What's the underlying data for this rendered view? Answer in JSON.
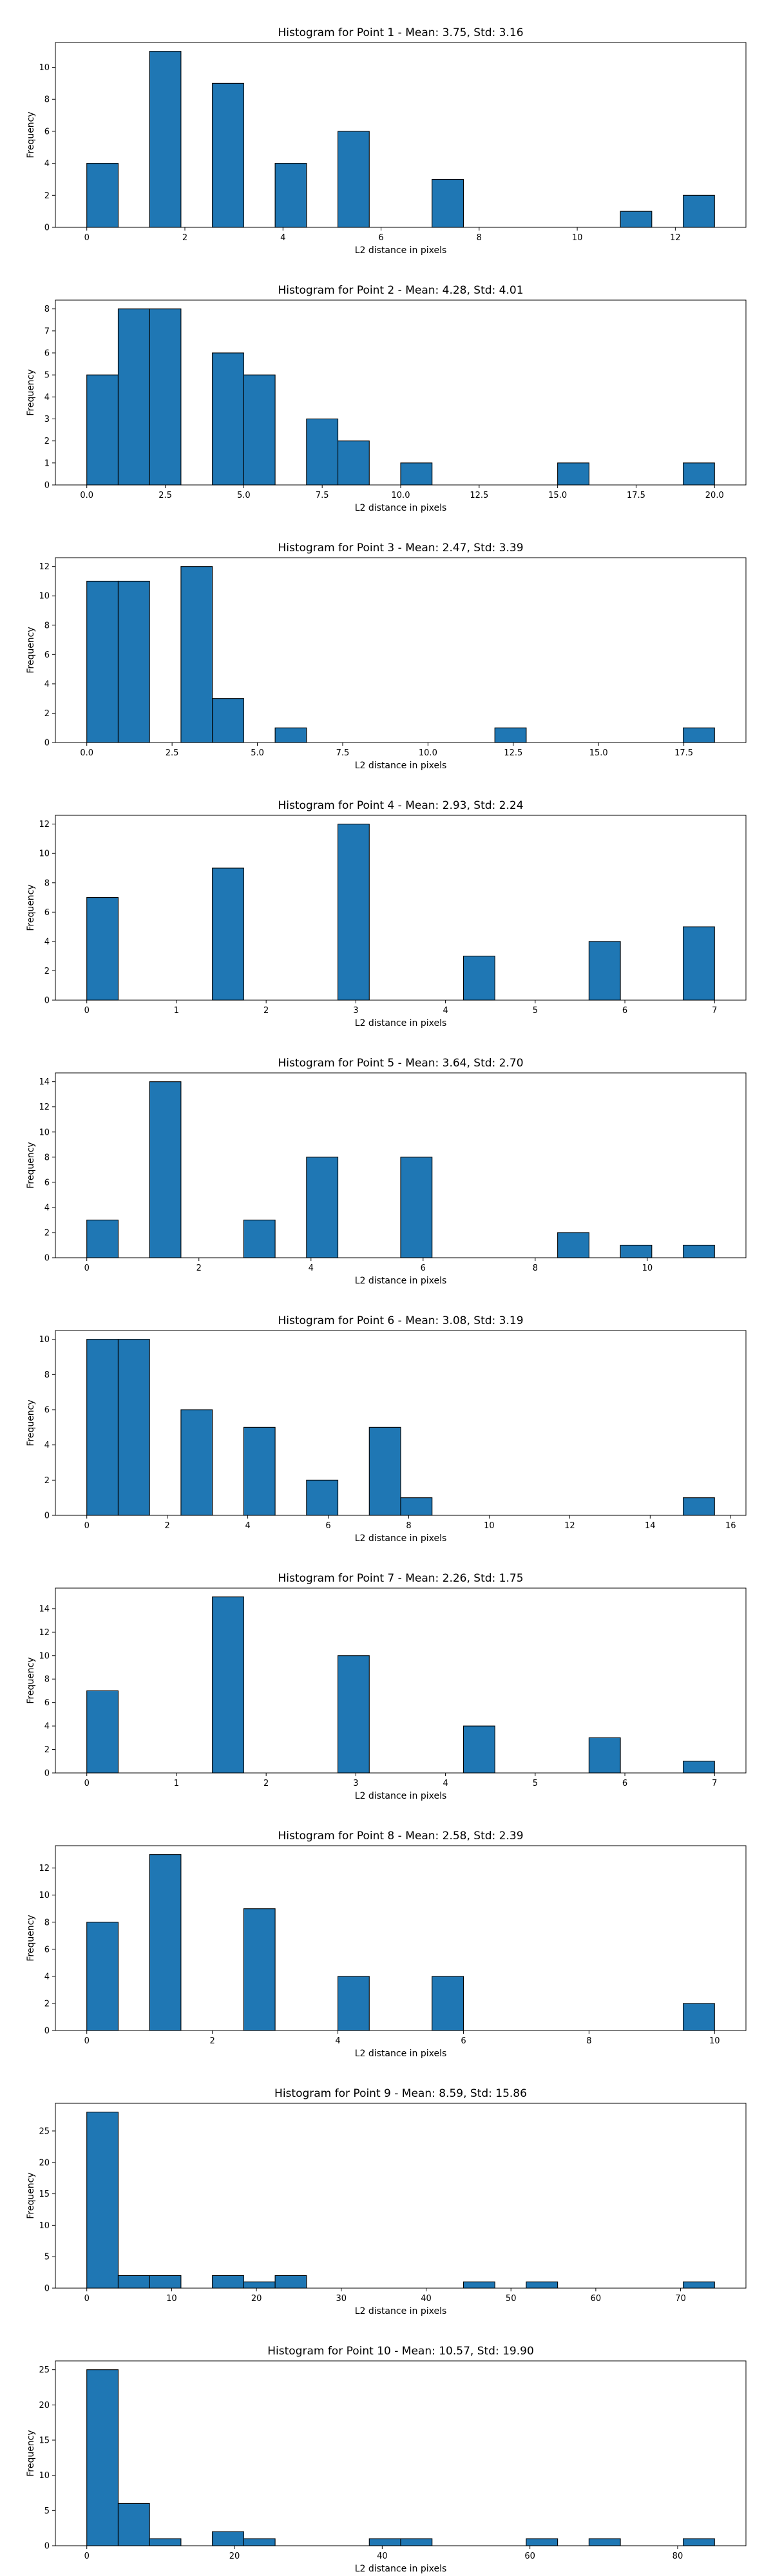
{
  "chart_data": [
    {
      "type": "bar",
      "title": "Histogram for Point 1 - Mean: 3.75, Std: 3.16",
      "xlabel": "L2 distance in pixels",
      "ylabel": "Frequency",
      "xlim": [
        -0.64,
        13.44
      ],
      "ylim": [
        0,
        11.55
      ],
      "xticks": [
        0,
        2,
        4,
        6,
        8,
        10,
        12
      ],
      "yticks": [
        0,
        2,
        4,
        6,
        8,
        10
      ],
      "bar_color": "#1f77b4",
      "edge_color": "#000000",
      "bin_width": 0.64,
      "bins": [
        {
          "x": 0.0,
          "count": 4
        },
        {
          "x": 1.28,
          "count": 11
        },
        {
          "x": 2.56,
          "count": 9
        },
        {
          "x": 3.84,
          "count": 4
        },
        {
          "x": 5.12,
          "count": 6
        },
        {
          "x": 7.04,
          "count": 3
        },
        {
          "x": 10.88,
          "count": 1
        },
        {
          "x": 12.16,
          "count": 2
        }
      ]
    },
    {
      "type": "bar",
      "title": "Histogram for Point 2 - Mean: 4.28, Std: 4.01",
      "xlabel": "L2 distance in pixels",
      "ylabel": "Frequency",
      "xlim": [
        -1.0,
        21.0
      ],
      "ylim": [
        0,
        8.4
      ],
      "xticks": [
        0.0,
        2.5,
        5.0,
        7.5,
        10.0,
        12.5,
        15.0,
        17.5,
        20.0
      ],
      "xtick_decimals": 1,
      "yticks": [
        0,
        1,
        2,
        3,
        4,
        5,
        6,
        7,
        8
      ],
      "bar_color": "#1f77b4",
      "edge_color": "#000000",
      "bin_width": 1.0,
      "bins": [
        {
          "x": 0.0,
          "count": 5
        },
        {
          "x": 1.0,
          "count": 8
        },
        {
          "x": 2.0,
          "count": 8
        },
        {
          "x": 4.0,
          "count": 6
        },
        {
          "x": 5.0,
          "count": 5
        },
        {
          "x": 7.0,
          "count": 3
        },
        {
          "x": 8.0,
          "count": 2
        },
        {
          "x": 10.0,
          "count": 1
        },
        {
          "x": 15.0,
          "count": 1
        },
        {
          "x": 19.0,
          "count": 1
        }
      ]
    },
    {
      "type": "bar",
      "title": "Histogram for Point 3 - Mean: 2.47, Std: 3.39",
      "xlabel": "L2 distance in pixels",
      "ylabel": "Frequency",
      "xlim": [
        -0.92,
        19.32
      ],
      "ylim": [
        0,
        12.6
      ],
      "xticks": [
        0.0,
        2.5,
        5.0,
        7.5,
        10.0,
        12.5,
        15.0,
        17.5
      ],
      "xtick_decimals": 1,
      "yticks": [
        0,
        2,
        4,
        6,
        8,
        10,
        12
      ],
      "bar_color": "#1f77b4",
      "edge_color": "#000000",
      "bin_width": 0.92,
      "bins": [
        {
          "x": 0.0,
          "count": 11
        },
        {
          "x": 0.92,
          "count": 11
        },
        {
          "x": 2.76,
          "count": 12
        },
        {
          "x": 3.68,
          "count": 3
        },
        {
          "x": 5.52,
          "count": 1
        },
        {
          "x": 11.96,
          "count": 1
        },
        {
          "x": 17.48,
          "count": 1
        }
      ]
    },
    {
      "type": "bar",
      "title": "Histogram for Point 4 - Mean: 2.93, Std: 2.24",
      "xlabel": "L2 distance in pixels",
      "ylabel": "Frequency",
      "xlim": [
        -0.35,
        7.35
      ],
      "ylim": [
        0,
        12.6
      ],
      "xticks": [
        0,
        1,
        2,
        3,
        4,
        5,
        6,
        7
      ],
      "yticks": [
        0,
        2,
        4,
        6,
        8,
        10,
        12
      ],
      "bar_color": "#1f77b4",
      "edge_color": "#000000",
      "bin_width": 0.35,
      "bins": [
        {
          "x": 0.0,
          "count": 7
        },
        {
          "x": 1.4,
          "count": 9
        },
        {
          "x": 2.8,
          "count": 12
        },
        {
          "x": 4.2,
          "count": 3
        },
        {
          "x": 5.6,
          "count": 4
        },
        {
          "x": 6.65,
          "count": 5
        }
      ]
    },
    {
      "type": "bar",
      "title": "Histogram for Point 5 - Mean: 3.64, Std: 2.70",
      "xlabel": "L2 distance in pixels",
      "ylabel": "Frequency",
      "xlim": [
        -0.56,
        11.76
      ],
      "ylim": [
        0,
        14.7
      ],
      "xticks": [
        0,
        2,
        4,
        6,
        8,
        10
      ],
      "yticks": [
        0,
        2,
        4,
        6,
        8,
        10,
        12,
        14
      ],
      "bar_color": "#1f77b4",
      "edge_color": "#000000",
      "bin_width": 0.56,
      "bins": [
        {
          "x": 0.0,
          "count": 3
        },
        {
          "x": 1.12,
          "count": 14
        },
        {
          "x": 2.8,
          "count": 3
        },
        {
          "x": 3.92,
          "count": 8
        },
        {
          "x": 5.6,
          "count": 8
        },
        {
          "x": 8.4,
          "count": 2
        },
        {
          "x": 9.52,
          "count": 1
        },
        {
          "x": 10.64,
          "count": 1
        }
      ]
    },
    {
      "type": "bar",
      "title": "Histogram for Point 6 - Mean: 3.08, Std: 3.19",
      "xlabel": "L2 distance in pixels",
      "ylabel": "Frequency",
      "xlim": [
        -0.78,
        16.38
      ],
      "ylim": [
        0,
        10.5
      ],
      "xticks": [
        0,
        2,
        4,
        6,
        8,
        10,
        12,
        14,
        16
      ],
      "yticks": [
        0,
        2,
        4,
        6,
        8,
        10
      ],
      "bar_color": "#1f77b4",
      "edge_color": "#000000",
      "bin_width": 0.78,
      "bins": [
        {
          "x": 0.0,
          "count": 10
        },
        {
          "x": 0.78,
          "count": 10
        },
        {
          "x": 2.34,
          "count": 6
        },
        {
          "x": 3.9,
          "count": 5
        },
        {
          "x": 5.46,
          "count": 2
        },
        {
          "x": 7.02,
          "count": 5
        },
        {
          "x": 7.8,
          "count": 1
        },
        {
          "x": 14.82,
          "count": 1
        }
      ]
    },
    {
      "type": "bar",
      "title": "Histogram for Point 7 - Mean: 2.26, Std: 1.75",
      "xlabel": "L2 distance in pixels",
      "ylabel": "Frequency",
      "xlim": [
        -0.35,
        7.35
      ],
      "ylim": [
        0,
        15.75
      ],
      "xticks": [
        0,
        1,
        2,
        3,
        4,
        5,
        6,
        7
      ],
      "yticks": [
        0,
        2,
        4,
        6,
        8,
        10,
        12,
        14
      ],
      "bar_color": "#1f77b4",
      "edge_color": "#000000",
      "bin_width": 0.35,
      "bins": [
        {
          "x": 0.0,
          "count": 7
        },
        {
          "x": 1.4,
          "count": 15
        },
        {
          "x": 2.8,
          "count": 10
        },
        {
          "x": 4.2,
          "count": 4
        },
        {
          "x": 5.6,
          "count": 3
        },
        {
          "x": 6.65,
          "count": 1
        }
      ]
    },
    {
      "type": "bar",
      "title": "Histogram for Point 8 - Mean: 2.58, Std: 2.39",
      "xlabel": "L2 distance in pixels",
      "ylabel": "Frequency",
      "xlim": [
        -0.5,
        10.5
      ],
      "ylim": [
        0,
        13.65
      ],
      "xticks": [
        0,
        2,
        4,
        6,
        8,
        10
      ],
      "yticks": [
        0,
        2,
        4,
        6,
        8,
        10,
        12
      ],
      "bar_color": "#1f77b4",
      "edge_color": "#000000",
      "bin_width": 0.5,
      "bins": [
        {
          "x": 0.0,
          "count": 8
        },
        {
          "x": 1.0,
          "count": 13
        },
        {
          "x": 2.5,
          "count": 9
        },
        {
          "x": 4.0,
          "count": 4
        },
        {
          "x": 5.5,
          "count": 4
        },
        {
          "x": 9.5,
          "count": 2
        }
      ]
    },
    {
      "type": "bar",
      "title": "Histogram for Point 9 - Mean: 8.59, Std: 15.86",
      "xlabel": "L2 distance in pixels",
      "ylabel": "Frequency",
      "xlim": [
        -3.7,
        77.7
      ],
      "ylim": [
        0,
        29.4
      ],
      "xticks": [
        0,
        10,
        20,
        30,
        40,
        50,
        60,
        70
      ],
      "yticks": [
        0,
        5,
        10,
        15,
        20,
        25
      ],
      "bar_color": "#1f77b4",
      "edge_color": "#000000",
      "bin_width": 3.7,
      "bins": [
        {
          "x": 0.0,
          "count": 28
        },
        {
          "x": 3.7,
          "count": 2
        },
        {
          "x": 7.4,
          "count": 2
        },
        {
          "x": 14.8,
          "count": 2
        },
        {
          "x": 18.5,
          "count": 1
        },
        {
          "x": 22.2,
          "count": 2
        },
        {
          "x": 44.4,
          "count": 1
        },
        {
          "x": 51.8,
          "count": 1
        },
        {
          "x": 70.3,
          "count": 1
        }
      ]
    },
    {
      "type": "bar",
      "title": "Histogram for Point 10 - Mean: 10.57, Std: 19.90",
      "xlabel": "L2 distance in pixels",
      "ylabel": "Frequency",
      "xlim": [
        -4.25,
        89.25
      ],
      "ylim": [
        0,
        26.25
      ],
      "xticks": [
        0,
        20,
        40,
        60,
        80
      ],
      "yticks": [
        0,
        5,
        10,
        15,
        20,
        25
      ],
      "bar_color": "#1f77b4",
      "edge_color": "#000000",
      "bin_width": 4.25,
      "bins": [
        {
          "x": 0.0,
          "count": 25
        },
        {
          "x": 4.25,
          "count": 6
        },
        {
          "x": 8.5,
          "count": 1
        },
        {
          "x": 17.0,
          "count": 2
        },
        {
          "x": 21.25,
          "count": 1
        },
        {
          "x": 38.25,
          "count": 1
        },
        {
          "x": 42.5,
          "count": 1
        },
        {
          "x": 59.5,
          "count": 1
        },
        {
          "x": 68.0,
          "count": 1
        },
        {
          "x": 80.75,
          "count": 1
        }
      ]
    }
  ]
}
